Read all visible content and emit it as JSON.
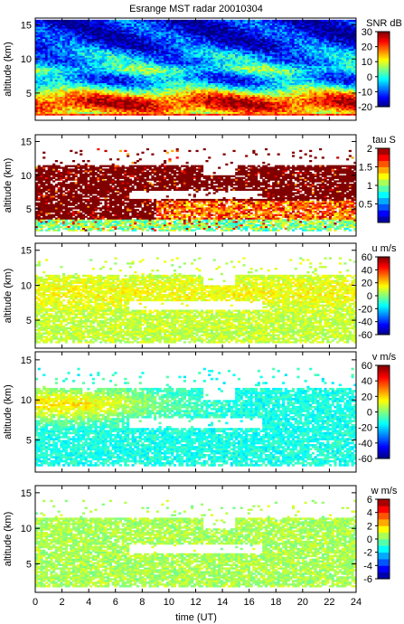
{
  "title": "Esrange MST radar 20010304",
  "x_axis": {
    "label": "time (UT)",
    "ticks": [
      0,
      2,
      4,
      6,
      8,
      10,
      12,
      14,
      16,
      18,
      20,
      22,
      24
    ],
    "range": [
      0,
      24
    ]
  },
  "chart_data": [
    {
      "type": "heatmap",
      "panel": "snr",
      "ylabel": "altitude (km)",
      "ylim": [
        1,
        16
      ],
      "yticks": [
        5,
        10,
        15
      ],
      "xlim": [
        0,
        24
      ],
      "colorbar": {
        "label": "SNR dB",
        "range": [
          -20,
          30
        ],
        "ticks": [
          -20,
          -10,
          0,
          10,
          20,
          30
        ]
      },
      "summary": "Coverage 1.8-16 km; strongest echoes (>20 dB) below ~5 km, bands near 8-9 km, weak (< -10 dB) above 12 km"
    },
    {
      "type": "heatmap",
      "panel": "tau",
      "ylabel": "altitude (km)",
      "ylim": [
        1,
        16
      ],
      "yticks": [
        5,
        10,
        15
      ],
      "xlim": [
        0,
        24
      ],
      "colorbar": {
        "label": "tau S",
        "range": [
          0,
          2
        ],
        "ticks": [
          0.5,
          1,
          1.5,
          2
        ]
      },
      "summary": "Mostly ~2 s between 3-11.5 km with gaps near 7 km and 12-16 UT; lower values 1-1.5 s in 3-6 km after 10 UT"
    },
    {
      "type": "heatmap",
      "panel": "u",
      "ylabel": "altitude (km)",
      "ylim": [
        1,
        16
      ],
      "yticks": [
        5,
        10,
        15
      ],
      "xlim": [
        0,
        24
      ],
      "colorbar": {
        "label": "u m/s",
        "range": [
          -60,
          60
        ],
        "ticks": [
          -60,
          -40,
          -20,
          0,
          20,
          40,
          60
        ]
      },
      "summary": "Zonal wind mostly 0-20 m/s up to ~11 km"
    },
    {
      "type": "heatmap",
      "panel": "v",
      "ylabel": "altitude (km)",
      "ylim": [
        1,
        16
      ],
      "yticks": [
        5,
        10,
        15
      ],
      "xlim": [
        0,
        24
      ],
      "colorbar": {
        "label": "v m/s",
        "range": [
          -60,
          60
        ],
        "ticks": [
          -60,
          -40,
          -20,
          0,
          20,
          40,
          60
        ]
      },
      "summary": "Meridional wind ~20 m/s near 9-10 km early, -10 to -20 m/s near 3-6 km"
    },
    {
      "type": "heatmap",
      "panel": "w",
      "ylabel": "altitude (km)",
      "ylim": [
        1,
        16
      ],
      "yticks": [
        5,
        10,
        15
      ],
      "xlim": [
        0,
        24
      ],
      "colorbar": {
        "label": "w m/s",
        "range": [
          -6,
          6
        ],
        "ticks": [
          -6,
          -4,
          -2,
          0,
          2,
          4,
          6
        ]
      },
      "summary": "Vertical wind near 0-1 m/s throughout"
    }
  ]
}
